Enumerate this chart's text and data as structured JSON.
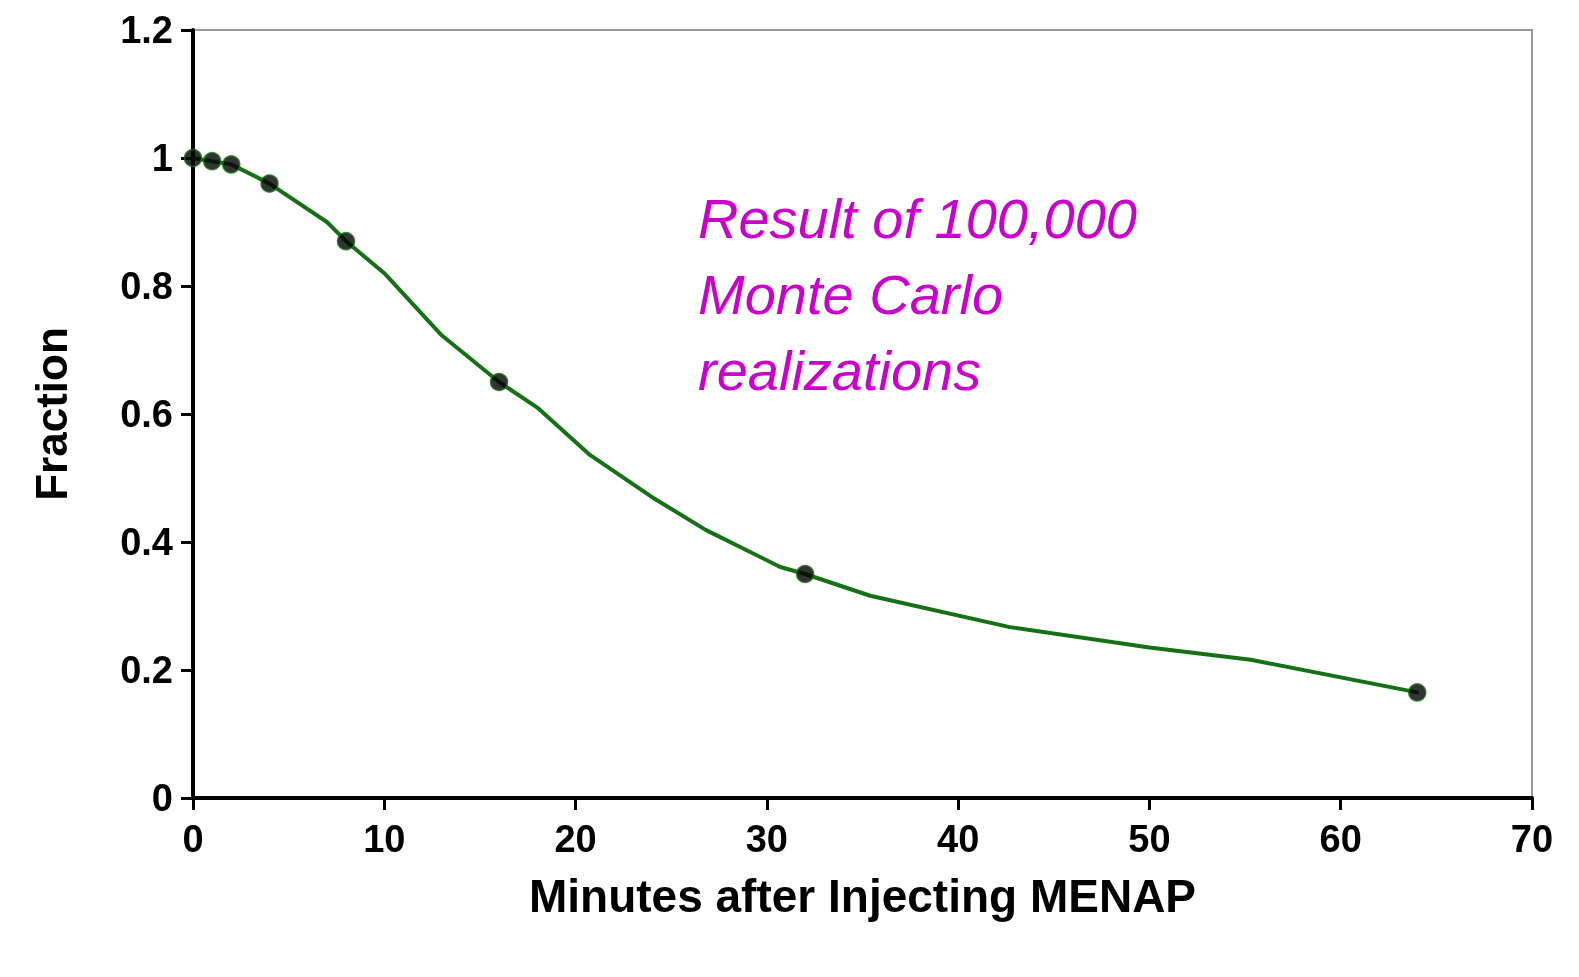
{
  "chart_data": {
    "type": "line",
    "xlabel": "Minutes after Injecting MENAP",
    "ylabel": "Fraction",
    "xlim": [
      0,
      70
    ],
    "xticks": [
      0,
      10,
      20,
      30,
      40,
      50,
      60,
      70
    ],
    "ylim": [
      0,
      1.2
    ],
    "yticks": [
      0,
      0.2,
      0.4,
      0.6,
      0.8,
      1,
      1.2
    ],
    "grid": false,
    "series": [
      {
        "color": "#167016",
        "marker": "none",
        "line_style": "solid",
        "x": [
          0,
          1,
          2,
          4,
          7,
          8,
          10,
          13,
          16,
          18,
          20.75,
          24,
          26.8,
          30.7,
          32,
          35.4,
          42.7,
          50,
          55.3,
          64
        ],
        "values": [
          1,
          0.995,
          0.99,
          0.96,
          0.9,
          0.87,
          0.82,
          0.723,
          0.65,
          0.61,
          0.536,
          0.47,
          0.419,
          0.361,
          0.35,
          0.316,
          0.267,
          0.235,
          0.216,
          0.165
        ]
      },
      {
        "type": "scatter",
        "color": "#000000",
        "marker": "circle",
        "x": [
          0,
          1,
          2,
          4,
          8,
          16,
          32,
          64
        ],
        "values": [
          1,
          0.995,
          0.99,
          0.96,
          0.87,
          0.65,
          0.35,
          0.165
        ]
      }
    ],
    "annotations": [
      "Result of 100,000\nMonte Carlo\nrealizations"
    ]
  }
}
